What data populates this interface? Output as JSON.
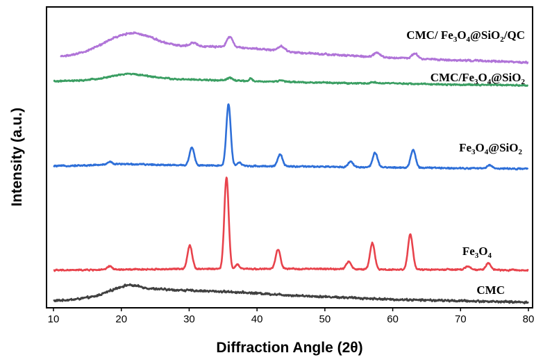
{
  "chart_data": {
    "type": "line",
    "title": "",
    "xlabel": "Diffraction Angle (2θ)",
    "ylabel": "Intensity (a.u.)",
    "xlim": [
      10,
      80
    ],
    "xticks": [
      10,
      20,
      30,
      40,
      50,
      60,
      70,
      80
    ],
    "grid": false,
    "legend": "inline labels on right",
    "series": [
      {
        "name": "CMC",
        "label_parts": [
          {
            "t": "CMC",
            "sub": false
          }
        ],
        "color": "#404040",
        "offset": 0,
        "noise": 1.6,
        "points": [
          [
            10,
            4
          ],
          [
            13,
            6
          ],
          [
            16,
            10
          ],
          [
            18,
            17
          ],
          [
            19.5,
            23
          ],
          [
            21,
            27
          ],
          [
            22.5,
            25
          ],
          [
            24,
            22
          ],
          [
            27,
            20
          ],
          [
            30,
            19
          ],
          [
            33,
            18
          ],
          [
            36,
            17
          ],
          [
            40,
            15
          ],
          [
            45,
            12
          ],
          [
            50,
            10
          ],
          [
            55,
            8
          ],
          [
            60,
            6
          ],
          [
            65,
            5
          ],
          [
            70,
            4
          ],
          [
            75,
            3
          ],
          [
            80,
            2
          ]
        ],
        "peaks": []
      },
      {
        "name": "Fe3O4",
        "label_parts": [
          {
            "t": "Fe",
            "sub": false
          },
          {
            "t": "3",
            "sub": true
          },
          {
            "t": "O",
            "sub": false
          },
          {
            "t": "4",
            "sub": true
          }
        ],
        "color": "#e8434c",
        "offset": 44,
        "noise": 1.1,
        "points": [
          [
            10,
            4
          ],
          [
            20,
            5
          ],
          [
            30,
            6
          ],
          [
            40,
            6
          ],
          [
            50,
            6
          ],
          [
            60,
            5
          ],
          [
            70,
            5
          ],
          [
            80,
            4
          ]
        ],
        "peaks": [
          [
            18.3,
            5,
            0.35
          ],
          [
            30.1,
            34,
            0.35
          ],
          [
            35.5,
            132,
            0.32
          ],
          [
            37.1,
            6,
            0.3
          ],
          [
            43.1,
            28,
            0.35
          ],
          [
            53.5,
            11,
            0.35
          ],
          [
            57.0,
            38,
            0.35
          ],
          [
            62.6,
            51,
            0.35
          ],
          [
            71.1,
            5,
            0.35
          ],
          [
            74.1,
            10,
            0.35
          ]
        ]
      },
      {
        "name": "Fe3O4@SiO2",
        "label_parts": [
          {
            "t": "Fe",
            "sub": false
          },
          {
            "t": "3",
            "sub": true
          },
          {
            "t": "O",
            "sub": false
          },
          {
            "t": "4",
            "sub": true
          },
          {
            "t": "@SiO",
            "sub": false
          },
          {
            "t": "2",
            "sub": true
          }
        ],
        "color": "#2e6fd8",
        "offset": 191,
        "noise": 1.1,
        "points": [
          [
            10,
            7
          ],
          [
            15,
            8
          ],
          [
            20,
            10
          ],
          [
            25,
            9
          ],
          [
            30,
            8
          ],
          [
            40,
            7
          ],
          [
            50,
            6
          ],
          [
            60,
            5
          ],
          [
            70,
            4
          ],
          [
            80,
            3
          ]
        ],
        "peaks": [
          [
            18.3,
            4,
            0.35
          ],
          [
            30.4,
            26,
            0.35
          ],
          [
            35.8,
            89,
            0.32
          ],
          [
            37.4,
            5,
            0.3
          ],
          [
            43.4,
            17,
            0.35
          ],
          [
            53.8,
            8,
            0.35
          ],
          [
            57.4,
            21,
            0.35
          ],
          [
            63.0,
            26,
            0.35
          ],
          [
            74.3,
            5,
            0.35
          ]
        ]
      },
      {
        "name": "CMC/Fe3O4@SiO2",
        "label_parts": [
          {
            "t": "CMC/Fe",
            "sub": false
          },
          {
            "t": "3",
            "sub": true
          },
          {
            "t": "O",
            "sub": false
          },
          {
            "t": "4",
            "sub": true
          },
          {
            "t": "@SiO",
            "sub": false
          },
          {
            "t": "2",
            "sub": true
          }
        ],
        "color": "#3a9e62",
        "offset": 307,
        "noise": 1.1,
        "points": [
          [
            10,
            13
          ],
          [
            14,
            14
          ],
          [
            17,
            17
          ],
          [
            19,
            21
          ],
          [
            21,
            24
          ],
          [
            23,
            22
          ],
          [
            25,
            19
          ],
          [
            28,
            16
          ],
          [
            32,
            15
          ],
          [
            36,
            14
          ],
          [
            40,
            13
          ],
          [
            45,
            12
          ],
          [
            50,
            11
          ],
          [
            55,
            10
          ],
          [
            60,
            10
          ],
          [
            65,
            9
          ],
          [
            70,
            8
          ],
          [
            75,
            8
          ],
          [
            80,
            7
          ]
        ],
        "peaks": [
          [
            36.0,
            4,
            0.4
          ],
          [
            39.1,
            4,
            0.2
          ],
          [
            43.5,
            2,
            0.4
          ],
          [
            57.2,
            2,
            0.4
          ]
        ]
      },
      {
        "name": "CMC/ Fe3O4@SiO2/QC",
        "label_parts": [
          {
            "t": "CMC/ Fe",
            "sub": false
          },
          {
            "t": "3",
            "sub": true
          },
          {
            "t": "O",
            "sub": false
          },
          {
            "t": "4",
            "sub": true
          },
          {
            "t": "@SiO",
            "sub": false
          },
          {
            "t": "2",
            "sub": true
          },
          {
            "t": "/QC",
            "sub": false
          }
        ],
        "color": "#b074d8",
        "offset": 343,
        "noise": 1.4,
        "points": [
          [
            11,
            13
          ],
          [
            13,
            15
          ],
          [
            15,
            21
          ],
          [
            17,
            30
          ],
          [
            19,
            40
          ],
          [
            21,
            46
          ],
          [
            22,
            47
          ],
          [
            24,
            42
          ],
          [
            26,
            34
          ],
          [
            28,
            29
          ],
          [
            30,
            28
          ],
          [
            33,
            27
          ],
          [
            36,
            26
          ],
          [
            40,
            24
          ],
          [
            45,
            19
          ],
          [
            50,
            16
          ],
          [
            55,
            13
          ],
          [
            60,
            11
          ],
          [
            65,
            9
          ],
          [
            70,
            7
          ],
          [
            75,
            6
          ],
          [
            80,
            4
          ]
        ],
        "peaks": [
          [
            30.6,
            5,
            0.5
          ],
          [
            36.0,
            15,
            0.45
          ],
          [
            43.6,
            7,
            0.5
          ],
          [
            57.7,
            6,
            0.45
          ],
          [
            63.3,
            7,
            0.45
          ]
        ]
      }
    ]
  }
}
